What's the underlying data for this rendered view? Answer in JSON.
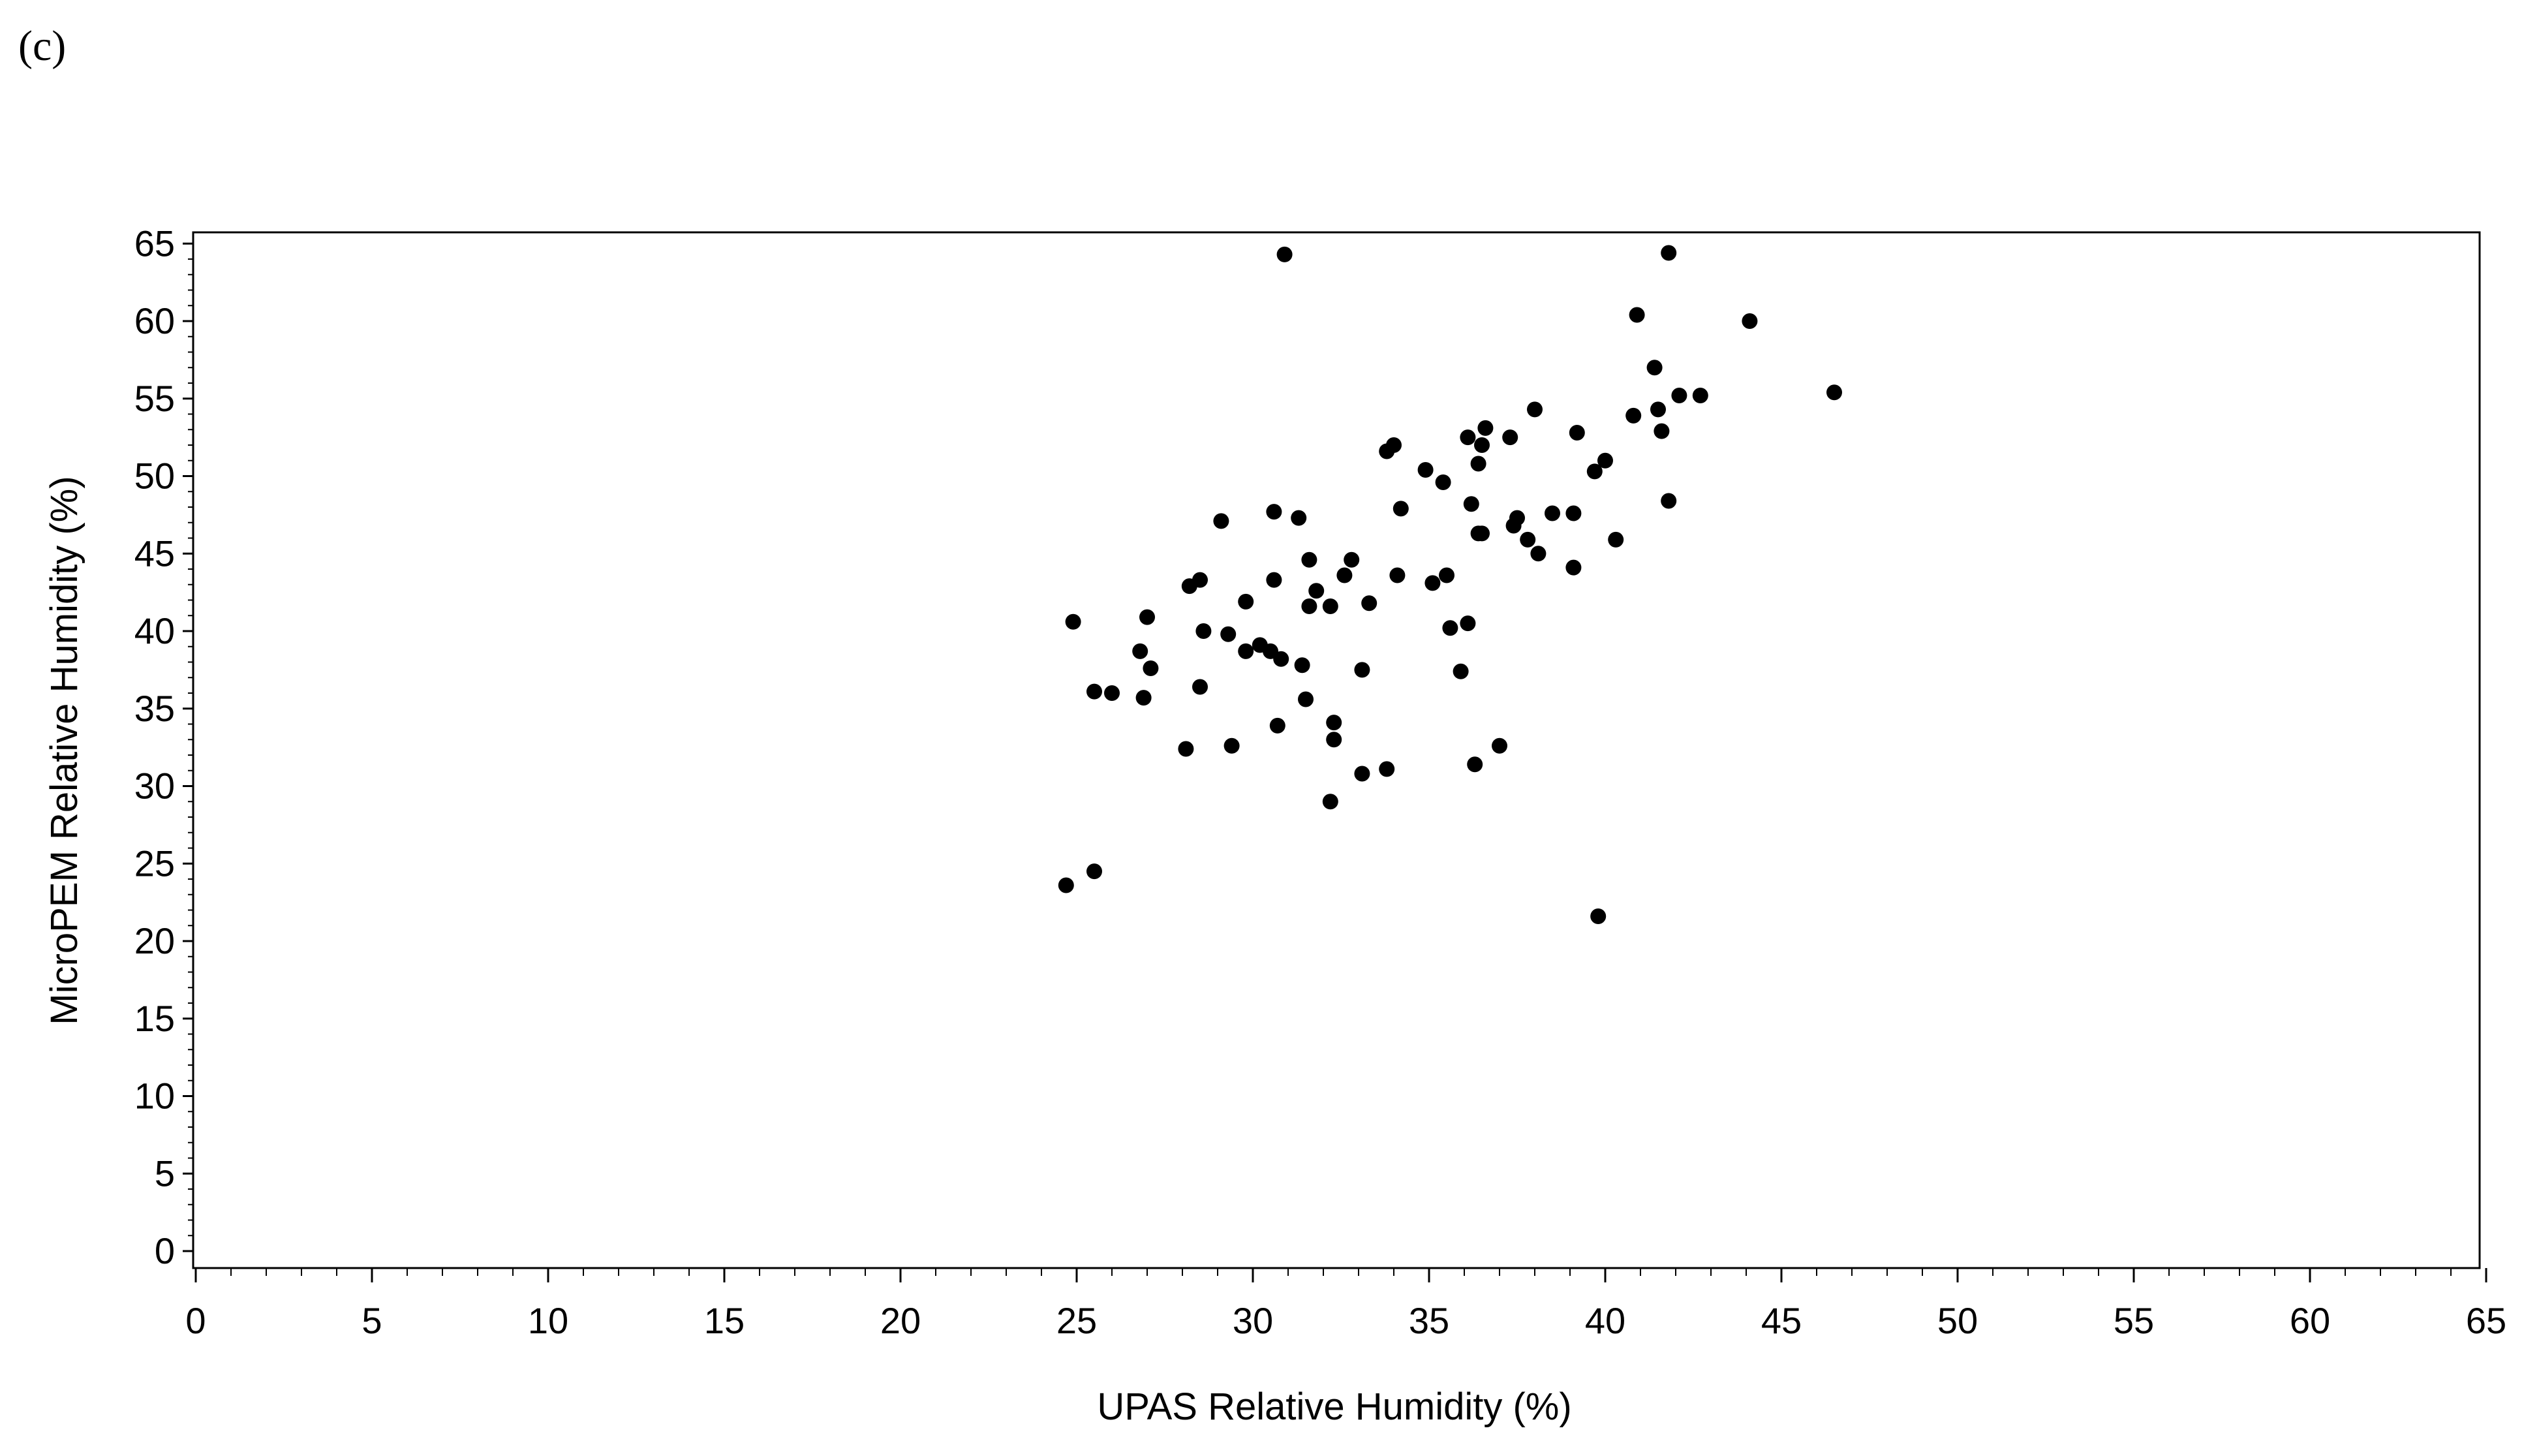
{
  "panel_label": "(c)",
  "colors": {
    "marker": "#000000",
    "axis": "#000000",
    "background": "#ffffff"
  },
  "chart_data": {
    "type": "scatter",
    "title": "",
    "xlabel": "UPAS Relative Humidity (%)",
    "ylabel": "MicroPEM Relative Humidity (%)",
    "xlim": [
      0,
      65
    ],
    "ylim": [
      -1,
      66
    ],
    "xticks": [
      0,
      5,
      10,
      15,
      20,
      25,
      30,
      35,
      40,
      45,
      50,
      55,
      60,
      65
    ],
    "yticks": [
      0,
      5,
      10,
      15,
      20,
      25,
      30,
      35,
      40,
      45,
      50,
      55,
      60,
      65
    ],
    "grid": false,
    "legend": "none",
    "x": [
      30.9,
      41.8,
      40.9,
      44.1,
      46.5,
      41.4,
      42.1,
      42.7,
      41.5,
      40.8,
      41.6,
      38.0,
      39.2,
      36.6,
      37.3,
      36.1,
      36.5,
      36.4,
      34.0,
      33.8,
      34.9,
      35.4,
      36.5,
      40.0,
      39.7,
      41.8,
      36.2,
      34.2,
      38.5,
      39.1,
      37.5,
      37.4,
      36.4,
      37.8,
      38.1,
      39.1,
      40.3,
      29.1,
      30.6,
      31.3,
      31.6,
      32.8,
      32.6,
      33.3,
      32.2,
      31.6,
      31.8,
      30.6,
      28.5,
      28.2,
      29.8,
      29.3,
      28.6,
      30.2,
      29.8,
      30.5,
      30.8,
      31.4,
      33.1,
      31.5,
      32.3,
      32.3,
      30.7,
      28.5,
      29.4,
      28.1,
      32.2,
      33.1,
      33.8,
      34.1,
      35.1,
      35.5,
      36.1,
      35.6,
      35.9,
      36.3,
      37.0,
      27.0,
      26.8,
      27.1,
      25.5,
      26.0,
      26.9,
      24.9,
      24.7,
      25.5,
      39.8
    ],
    "y": [
      64.3,
      64.4,
      60.4,
      60.0,
      55.4,
      57.0,
      55.2,
      55.2,
      54.3,
      53.9,
      52.9,
      54.3,
      52.8,
      53.1,
      52.5,
      52.5,
      52.0,
      50.8,
      52.0,
      51.6,
      50.4,
      49.6,
      46.3,
      51.0,
      50.3,
      48.4,
      48.2,
      47.9,
      47.6,
      47.6,
      47.3,
      46.8,
      46.3,
      45.9,
      45.0,
      44.1,
      45.9,
      47.1,
      47.7,
      47.3,
      44.6,
      44.6,
      43.6,
      41.8,
      41.6,
      41.6,
      42.6,
      43.3,
      43.3,
      42.9,
      41.9,
      39.8,
      40.0,
      39.1,
      38.7,
      38.7,
      38.2,
      37.8,
      37.5,
      35.6,
      34.1,
      33.0,
      33.9,
      36.4,
      32.6,
      32.4,
      29.0,
      30.8,
      31.1,
      43.6,
      43.1,
      43.6,
      40.5,
      40.2,
      37.4,
      31.4,
      32.6,
      40.9,
      38.7,
      37.6,
      36.1,
      36.0,
      35.7,
      40.6,
      23.6,
      24.5,
      21.6
    ]
  }
}
